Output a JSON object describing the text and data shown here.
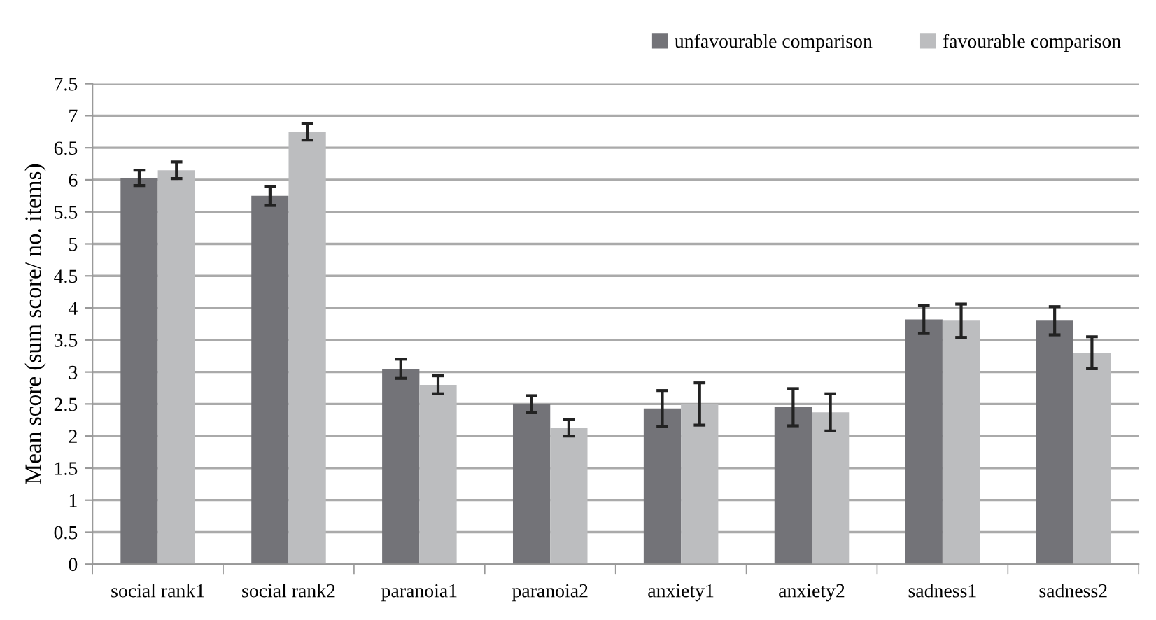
{
  "chart_data": {
    "type": "bar",
    "ylabel": "Mean score (sum score/ no. items)",
    "categories": [
      "social rank1",
      "social rank2",
      "paranoia1",
      "paranoia2",
      "anxiety1",
      "anxiety2",
      "sadness1",
      "sadness2"
    ],
    "series": [
      {
        "name": "unfavourable comparison",
        "color": "#737378",
        "values": [
          6.03,
          5.75,
          3.05,
          2.5,
          2.43,
          2.45,
          3.82,
          3.8
        ],
        "errors": [
          0.12,
          0.15,
          0.15,
          0.13,
          0.28,
          0.29,
          0.22,
          0.22
        ]
      },
      {
        "name": "favourable comparison",
        "color": "#bcbdbf",
        "values": [
          6.15,
          6.75,
          2.8,
          2.13,
          2.5,
          2.37,
          3.8,
          3.3
        ],
        "errors": [
          0.13,
          0.13,
          0.14,
          0.13,
          0.33,
          0.29,
          0.26,
          0.25
        ]
      }
    ],
    "ylim": [
      0,
      7.5
    ],
    "yticks": [
      0,
      0.5,
      1,
      1.5,
      2,
      2.5,
      3,
      3.5,
      4,
      4.5,
      5,
      5.5,
      6,
      6.5,
      7,
      7.5
    ],
    "grid": "y",
    "legend": "top right"
  }
}
